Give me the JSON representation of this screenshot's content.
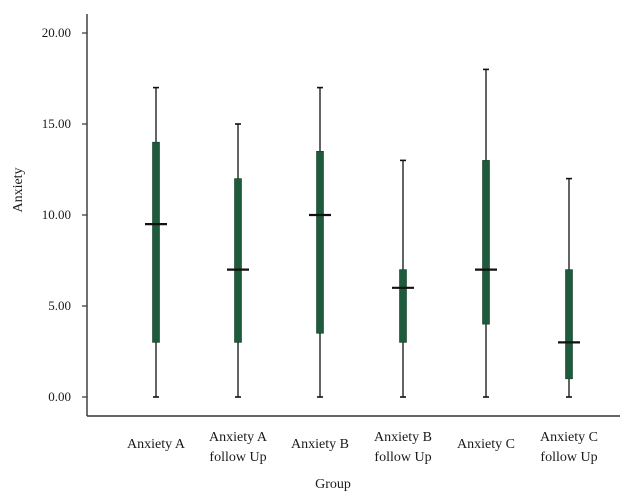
{
  "chart_data": {
    "type": "boxplot",
    "title": "",
    "xlabel": "Group",
    "ylabel": "Anxiety",
    "ylim": [
      0,
      20
    ],
    "yticks": [
      "0.00",
      "5.00",
      "10.00",
      "15.00",
      "20.00"
    ],
    "categories": [
      [
        "Anxiety A"
      ],
      [
        "Anxiety A",
        "follow Up"
      ],
      [
        "Anxiety B"
      ],
      [
        "Anxiety B",
        "follow Up"
      ],
      [
        "Anxiety C"
      ],
      [
        "Anxiety C",
        "follow Up"
      ]
    ],
    "boxes": [
      {
        "min": 0,
        "q1": 3,
        "median": 9.5,
        "q3": 14,
        "max": 17
      },
      {
        "min": 0,
        "q1": 3,
        "median": 7,
        "q3": 12,
        "max": 15
      },
      {
        "min": 0,
        "q1": 3.5,
        "median": 10,
        "q3": 13.5,
        "max": 17
      },
      {
        "min": 0,
        "q1": 3,
        "median": 6,
        "q3": 7,
        "max": 13
      },
      {
        "min": 0,
        "q1": 4,
        "median": 7,
        "q3": 13,
        "max": 18
      },
      {
        "min": 0,
        "q1": 1,
        "median": 3,
        "q3": 7,
        "max": 12
      }
    ],
    "colors": {
      "box": "#1e5b3c",
      "line": "#111111",
      "axis": "#333333"
    },
    "grid": false,
    "legend": "none"
  }
}
